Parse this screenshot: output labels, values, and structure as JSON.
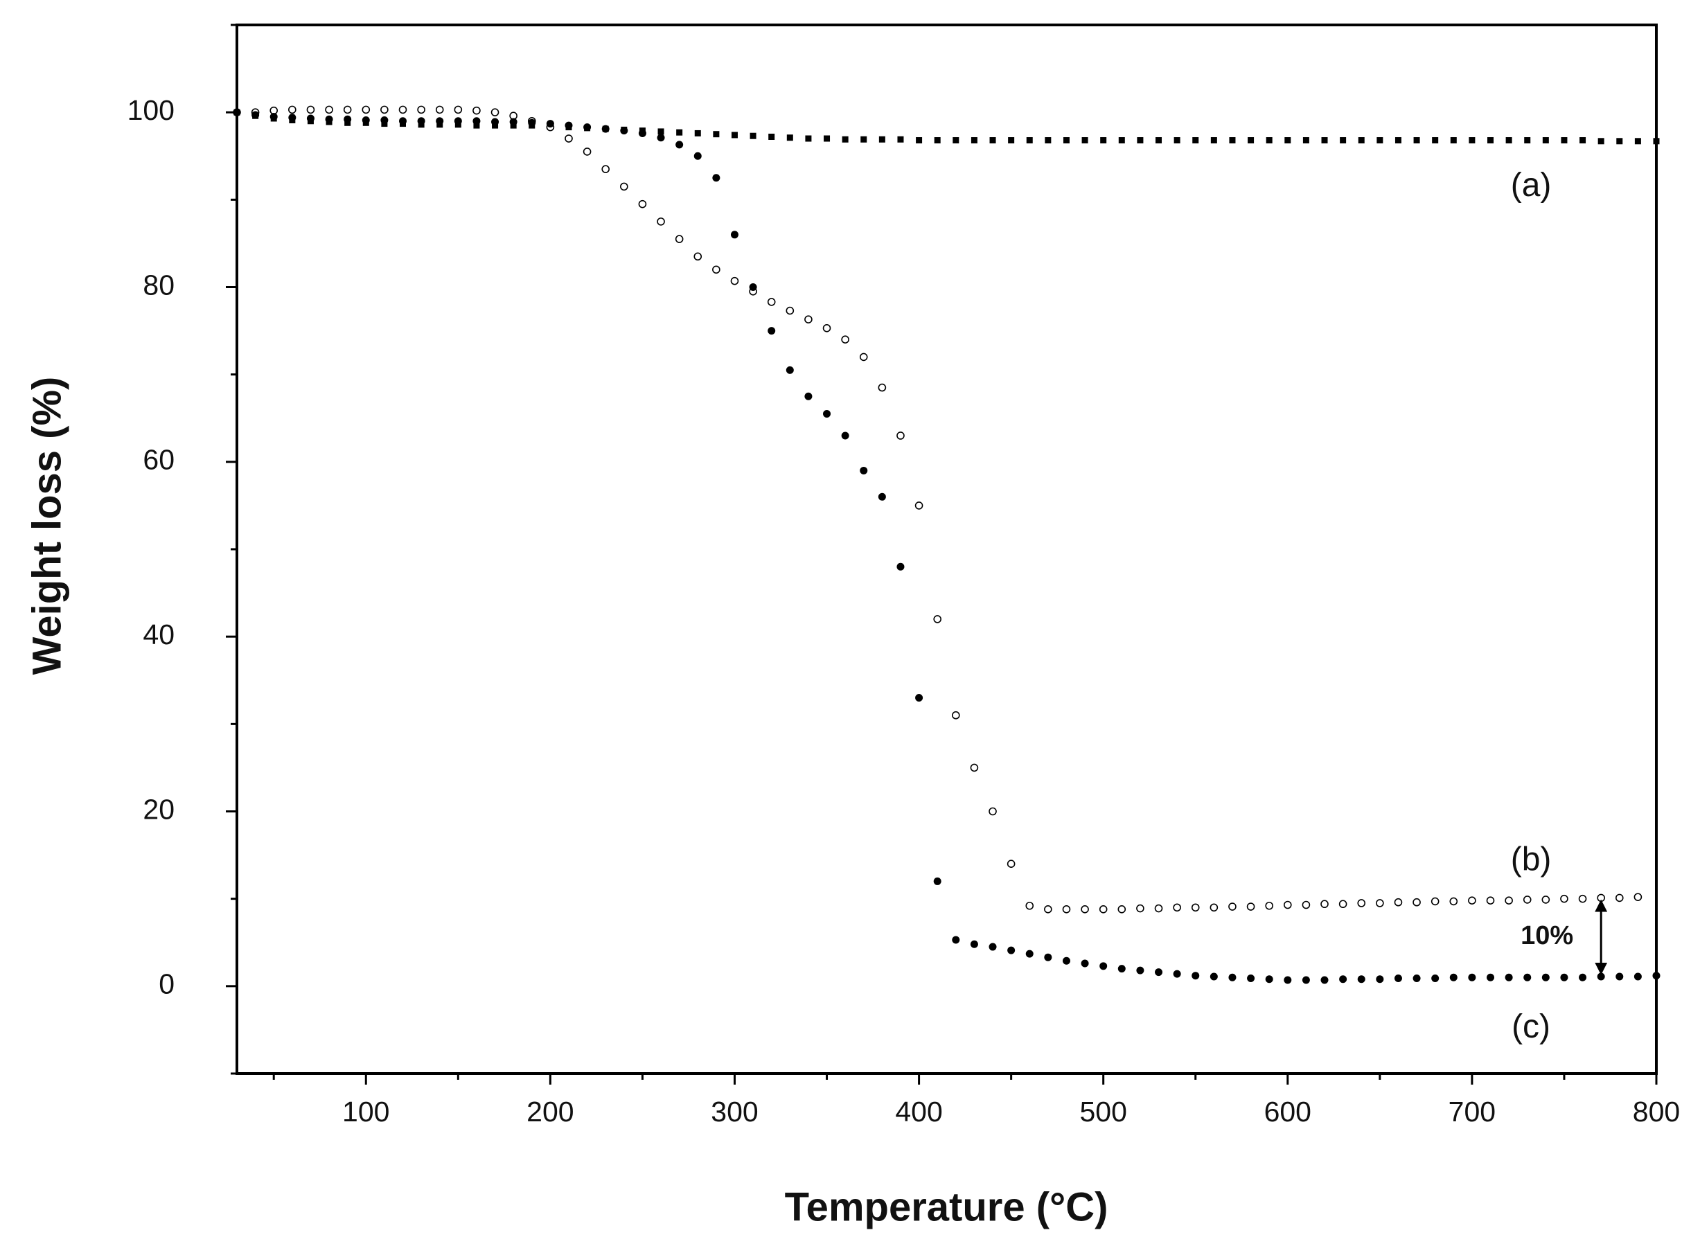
{
  "chart_data": {
    "type": "scatter",
    "xlabel": "Temperature (°C)",
    "ylabel": "Weight loss (%)",
    "xlim": [
      30,
      800
    ],
    "ylim": [
      -10,
      110
    ],
    "xticks": [
      100,
      200,
      300,
      400,
      500,
      600,
      700,
      800
    ],
    "yticks": [
      0,
      20,
      40,
      60,
      80,
      100
    ],
    "xminorticks": [
      50,
      150,
      250,
      350,
      450,
      550,
      650,
      750
    ],
    "yminorticks": [
      -10,
      10,
      30,
      50,
      70,
      90,
      110
    ],
    "annotation": "10%",
    "x": [
      30,
      40,
      50,
      60,
      70,
      80,
      90,
      100,
      110,
      120,
      130,
      140,
      150,
      160,
      170,
      180,
      190,
      200,
      210,
      220,
      230,
      240,
      250,
      260,
      270,
      280,
      290,
      300,
      310,
      320,
      330,
      340,
      350,
      360,
      370,
      380,
      390,
      400,
      410,
      420,
      430,
      440,
      450,
      460,
      470,
      480,
      490,
      500,
      510,
      520,
      530,
      540,
      550,
      560,
      570,
      580,
      590,
      600,
      610,
      620,
      630,
      640,
      650,
      660,
      670,
      680,
      690,
      700,
      710,
      720,
      730,
      740,
      750,
      760,
      770,
      780,
      790,
      800
    ],
    "series": [
      {
        "name": "(a)",
        "color": "#000000",
        "marker": "square",
        "values": [
          100,
          99.6,
          99.3,
          99.1,
          99,
          98.9,
          98.8,
          98.8,
          98.7,
          98.7,
          98.6,
          98.6,
          98.6,
          98.5,
          98.5,
          98.5,
          98.5,
          98.4,
          98.3,
          98.2,
          98.1,
          98,
          97.9,
          97.8,
          97.7,
          97.6,
          97.5,
          97.4,
          97.3,
          97.2,
          97.1,
          97,
          97,
          96.9,
          96.9,
          96.9,
          96.9,
          96.8,
          96.8,
          96.8,
          96.8,
          96.8,
          96.8,
          96.8,
          96.8,
          96.8,
          96.8,
          96.8,
          96.8,
          96.8,
          96.8,
          96.8,
          96.8,
          96.8,
          96.8,
          96.8,
          96.8,
          96.8,
          96.8,
          96.8,
          96.8,
          96.8,
          96.8,
          96.8,
          96.8,
          96.8,
          96.8,
          96.8,
          96.8,
          96.8,
          96.8,
          96.8,
          96.8,
          96.8,
          96.7,
          96.7,
          96.7,
          96.7
        ]
      },
      {
        "name": "(b)",
        "color": "#000000",
        "marker": "open-circle",
        "values": [
          100,
          100,
          100.2,
          100.3,
          100.3,
          100.3,
          100.3,
          100.3,
          100.3,
          100.3,
          100.3,
          100.3,
          100.3,
          100.2,
          100,
          99.6,
          99,
          98.3,
          97,
          95.5,
          93.5,
          91.5,
          89.5,
          87.5,
          85.5,
          83.5,
          82,
          80.7,
          79.5,
          78.3,
          77.3,
          76.3,
          75.3,
          74,
          72,
          68.5,
          63,
          55,
          42,
          31,
          25,
          20,
          14,
          9.2,
          8.8,
          8.8,
          8.8,
          8.8,
          8.8,
          8.9,
          8.9,
          9,
          9,
          9,
          9.1,
          9.1,
          9.2,
          9.3,
          9.3,
          9.4,
          9.4,
          9.5,
          9.5,
          9.6,
          9.6,
          9.7,
          9.7,
          9.8,
          9.8,
          9.8,
          9.9,
          9.9,
          10,
          10,
          10.1,
          10.1,
          10.2,
          null
        ]
      },
      {
        "name": "(c)",
        "color": "#000000",
        "marker": "filled-circle",
        "values": [
          100,
          99.7,
          99.5,
          99.4,
          99.3,
          99.2,
          99.2,
          99.1,
          99.1,
          99,
          99,
          99,
          99,
          99,
          98.9,
          98.9,
          98.8,
          98.7,
          98.5,
          98.3,
          98.1,
          97.9,
          97.6,
          97.1,
          96.3,
          95,
          92.5,
          86,
          80,
          75,
          70.5,
          67.5,
          65.5,
          63,
          59,
          56,
          48,
          33,
          12,
          5.3,
          4.8,
          4.5,
          4.1,
          3.7,
          3.3,
          2.9,
          2.6,
          2.3,
          2,
          1.8,
          1.6,
          1.4,
          1.2,
          1.1,
          1,
          0.9,
          0.8,
          0.7,
          0.7,
          0.7,
          0.8,
          0.8,
          0.8,
          0.9,
          0.9,
          0.9,
          1,
          1,
          1,
          1,
          1,
          1,
          1,
          1,
          1.1,
          1.1,
          1.1,
          1.2
        ]
      }
    ]
  }
}
